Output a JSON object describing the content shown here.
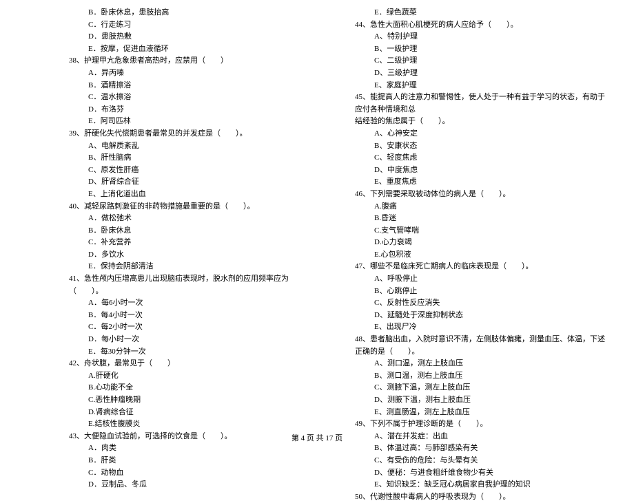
{
  "left": {
    "q37_options": [
      "B．卧床休息，患肢抬高",
      "C．行走练习",
      "D．患肢热敷",
      "E．按摩，促进血液循环"
    ],
    "q38": "38、护理甲亢危象患者高热时，应禁用（　　）",
    "q38_options": [
      "A．异丙嗪",
      "B．酒精擦浴",
      "C．温水擦浴",
      "D．布洛芬",
      "E．阿司匹林"
    ],
    "q39": "39、肝硬化失代偿期患者最常见的并发症是（　　）。",
    "q39_options": [
      "A、电解质紊乱",
      "B、肝性脑病",
      "C、原发性肝癌",
      "D、肝肾综合征",
      "E、上消化道出血"
    ],
    "q40": "40、减轻尿路刺激征的非药物措施最重要的是（　　）。",
    "q40_options": [
      "A．做松弛术",
      "B．卧床休息",
      "C．补充营养",
      "D．多饮水",
      "E．保持会阴部清洁"
    ],
    "q41": "41、急性颅内压增高患儿出现脑疝表现时，脱水剂的应用频率应为（　　）。",
    "q41_options": [
      "A．每6小时一次",
      "B．每4小时一次",
      "C．每2小时一次",
      "D．每小时一次",
      "E．每30分钟一次"
    ],
    "q42": "42、舟状腹，最常见于（　　）",
    "q42_options": [
      "A.肝硬化",
      "B.心功能不全",
      "C.恶性肿瘤晚期",
      "D.肾病综合征",
      "E.结核性腹膜炎"
    ],
    "q43": "43、大便隐血试验前，可选择的饮食是（　　）。",
    "q43_options": [
      "A．肉类",
      "B．肝类",
      "C．动物血",
      "D．豆制品、冬瓜"
    ]
  },
  "right": {
    "q43_last": "E．绿色蔬菜",
    "q44": "44、急性大面积心肌梗死的病人应给予（　　）。",
    "q44_options": [
      "A、特别护理",
      "B、一级护理",
      "C、二级护理",
      "D、三级护理",
      "E、家庭护理"
    ],
    "q45": "45、能提高人的注意力和警惕性，使人处于一种有益于学习的状态，有助于应付各种情境和总",
    "q45_cont": "结经验的焦虑属于（　　）。",
    "q45_options": [
      "A、心神安定",
      "B、安康状态",
      "C、轻度焦虑",
      "D、中度焦虑",
      "E、重度焦虑"
    ],
    "q46": "46、下列需要采取被动体位的病人是（　　）。",
    "q46_options": [
      "A.腹痛",
      "B.昏迷",
      "C.支气管哮喘",
      "D.心力衰竭",
      "E.心包积液"
    ],
    "q47": "47、哪些不是临床死亡期病人的临床表现是（　　）。",
    "q47_options": [
      "A、呼吸停止",
      "B、心跳停止",
      "C、反射性反应消失",
      "D、延髓处于深度抑制状态",
      "E、出现尸冷"
    ],
    "q48": "48、患者脑出血，入院时意识不清，左侧肢体偏瘫，测量血压、体温，下述正确的是（　　）。",
    "q48_options": [
      "A、测口温，测左上肢血压",
      "B、测口温，测右上肢血压",
      "C、测腋下温，测左上肢血压",
      "D、测腋下温，测右上肢血压",
      "E、测直肠温，测左上肢血压"
    ],
    "q49": "49、下列不属于护理诊断的是（　　）。",
    "q49_options": [
      "A、潜在并发症：出血",
      "B、体温过高：与肺部感染有关",
      "C、有受伤的危险：与头晕有关",
      "D、便秘：与进食粗纤维食物少有关",
      "E、知识缺乏：缺乏冠心病居家自我护理的知识"
    ],
    "q50": "50、代谢性酸中毒病人的呼吸表现为（　　）。"
  },
  "footer": "第 4 页 共 17 页"
}
